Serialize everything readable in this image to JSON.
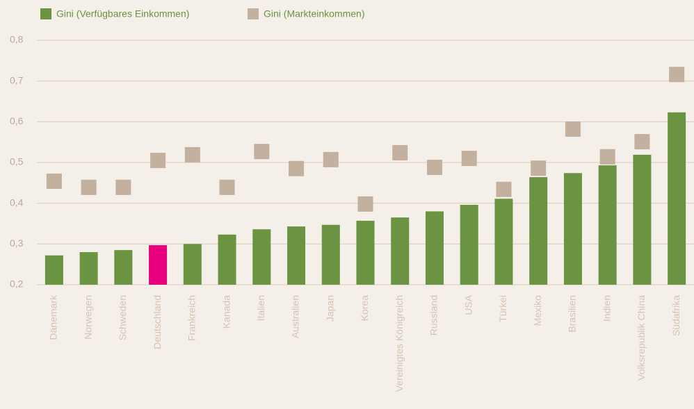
{
  "chart_data": {
    "type": "bar",
    "categories": [
      "Dänemark",
      "Norwegen",
      "Schweden",
      "Deutschland",
      "Frankreich",
      "Kanada",
      "Italien",
      "Australien",
      "Japan",
      "Korea",
      "Vereinigtes Königreich",
      "Russland",
      "USA",
      "Türkei",
      "Mexiko",
      "Brasilien",
      "Indien",
      "Volksrepublik China",
      "Südafrika"
    ],
    "series": [
      {
        "name": "Gini (Verfügbares Einkommen)",
        "color": "#6a9441",
        "kind": "bar",
        "colors": [
          "#6a9441",
          "#6a9441",
          "#6a9441",
          "#e6007e",
          "#6a9441",
          "#6a9441",
          "#6a9441",
          "#6a9441",
          "#6a9441",
          "#6a9441",
          "#6a9441",
          "#6a9441",
          "#6a9441",
          "#6a9441",
          "#6a9441",
          "#6a9441",
          "#6a9441",
          "#6a9441",
          "#6a9441"
        ],
        "values": [
          0.272,
          0.28,
          0.285,
          0.297,
          0.3,
          0.323,
          0.336,
          0.343,
          0.347,
          0.357,
          0.365,
          0.38,
          0.396,
          0.411,
          0.464,
          0.474,
          0.493,
          0.519,
          0.623
        ]
      },
      {
        "name": "Gini (Markteinkommen)",
        "color": "#c4b09e",
        "kind": "marker",
        "values": [
          0.454,
          0.439,
          0.439,
          0.505,
          0.519,
          0.439,
          0.527,
          0.485,
          0.507,
          0.398,
          0.524,
          0.488,
          0.51,
          0.434,
          0.486,
          0.582,
          0.514,
          0.551,
          0.716
        ]
      }
    ],
    "ylim": [
      0.2,
      0.8
    ],
    "yticks": [
      {
        "value": 0.2,
        "label": "0,2"
      },
      {
        "value": 0.3,
        "label": "0,3"
      },
      {
        "value": 0.4,
        "label": "0,4"
      },
      {
        "value": 0.5,
        "label": "0,5"
      },
      {
        "value": 0.6,
        "label": "0,6"
      },
      {
        "value": 0.7,
        "label": "0,7"
      },
      {
        "value": 0.8,
        "label": "0,8"
      }
    ],
    "grid": true
  }
}
